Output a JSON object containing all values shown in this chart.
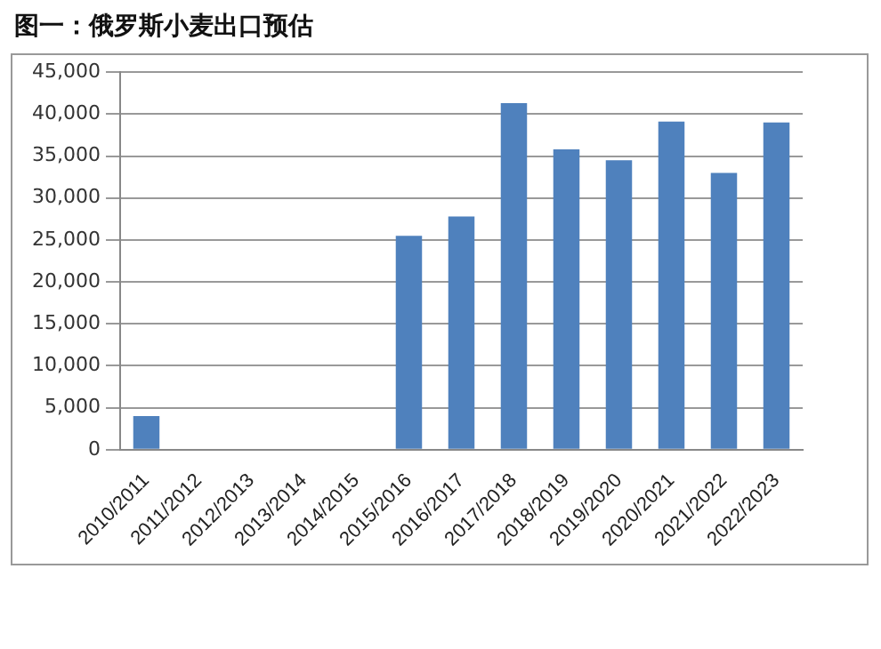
{
  "chart_data": {
    "type": "bar",
    "title": "图一：俄罗斯小麦出口预估",
    "categories": [
      "2010/2011",
      "2011/2012",
      "2012/2013",
      "2013/2014",
      "2014/2015",
      "2015/2016",
      "2016/2017",
      "2017/2018",
      "2018/2019",
      "2019/2020",
      "2020/2021",
      "2021/2022",
      "2022/2023"
    ],
    "series": [
      {
        "color": "#4f81bd",
        "values": [
          4000,
          null,
          null,
          null,
          null,
          25500,
          27800,
          41300,
          35800,
          34500,
          39100,
          33000,
          39000
        ]
      }
    ],
    "ylim": [
      0,
      45000
    ],
    "yticks": [
      {
        "value": 0,
        "label": "0"
      },
      {
        "value": 5000,
        "label": "5,000"
      },
      {
        "value": 10000,
        "label": "10,000"
      },
      {
        "value": 15000,
        "label": "15,000"
      },
      {
        "value": 20000,
        "label": "20,000"
      },
      {
        "value": 25000,
        "label": "25,000"
      },
      {
        "value": 30000,
        "label": "30,000"
      },
      {
        "value": 35000,
        "label": "35,000"
      },
      {
        "value": 40000,
        "label": "40,000"
      },
      {
        "value": 45000,
        "label": "45,000"
      }
    ],
    "grid": "y"
  }
}
